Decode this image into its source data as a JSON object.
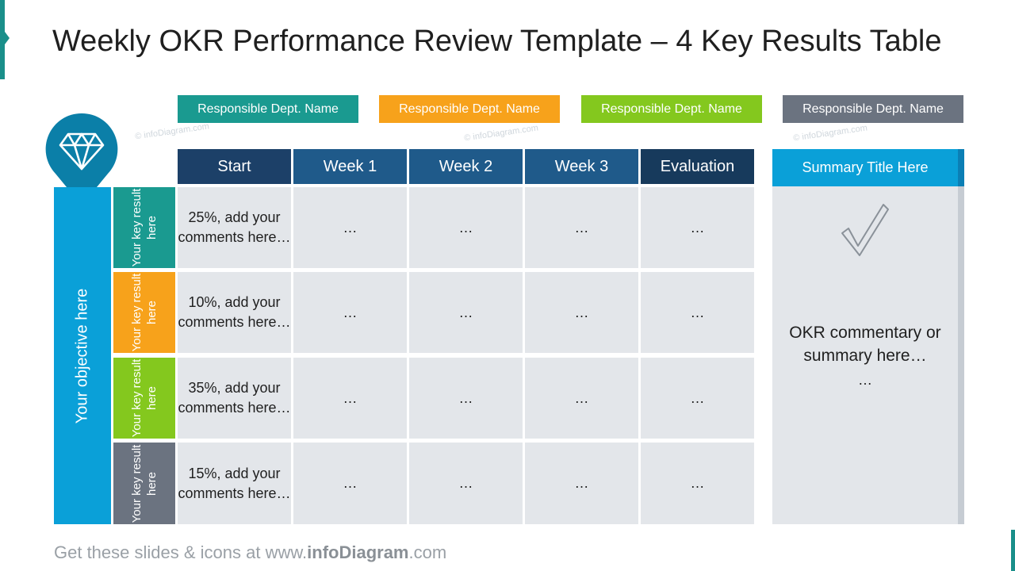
{
  "title": "Weekly OKR Performance Review Template – 4 Key Results Table",
  "colors": {
    "teal": "#1a8f8a",
    "orange": "#f7a21b",
    "green": "#84c226",
    "gray": "#6b7380",
    "blue": "#0aa0d8",
    "navy": "#1c4f7a",
    "navy_dark": "#173a5c",
    "cell": "#e3e6ea"
  },
  "departments": [
    {
      "label": "Responsible Dept. Name",
      "color": "#1a9a90"
    },
    {
      "label": "Responsible Dept. Name",
      "color": "#f7a21b"
    },
    {
      "label": "Responsible Dept. Name",
      "color": "#84c81e"
    },
    {
      "label": "Responsible Dept. Name",
      "color": "#6b7380"
    }
  ],
  "watermark": "© infoDiagram.com",
  "objective": {
    "label": "Your objective here",
    "icon": "diamond-icon"
  },
  "columns": [
    "Start",
    "Week 1",
    "Week 2",
    "Week 3",
    "Evaluation"
  ],
  "rows": [
    {
      "key_result": "Your key result here",
      "start": "25%, add your comments here…",
      "week1": "…",
      "week2": "…",
      "week3": "…",
      "evaluation": "…"
    },
    {
      "key_result": "Your key result here",
      "start": "10%, add your comments here…",
      "week1": "…",
      "week2": "…",
      "week3": "…",
      "evaluation": "…"
    },
    {
      "key_result": "Your key result here",
      "start": "35%, add your comments here…",
      "week1": "…",
      "week2": "…",
      "week3": "…",
      "evaluation": "…"
    },
    {
      "key_result": "Your key result here",
      "start": "15%, add your comments here…",
      "week1": "…",
      "week2": "…",
      "week3": "…",
      "evaluation": "…"
    }
  ],
  "summary": {
    "title": "Summary Title Here",
    "icon": "checkmark-icon",
    "text": "OKR commentary or summary here…",
    "dots": "…"
  },
  "footer": {
    "prefix": "Get these slides & icons at www.",
    "brand": "infoDiagram",
    "suffix": ".com"
  }
}
